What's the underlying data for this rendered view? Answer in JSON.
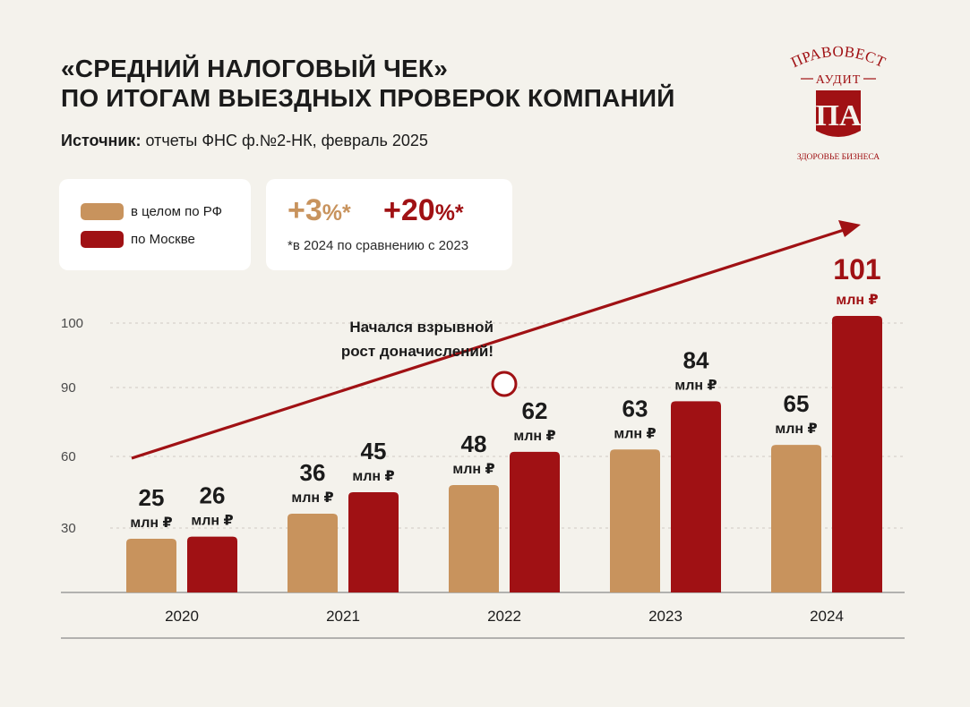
{
  "title_line1": "«СРЕДНИЙ НАЛОГОВЫЙ ЧЕК»",
  "title_line2": "ПО ИТОГАМ ВЫЕЗДНЫХ ПРОВЕРОК КОМПАНИЙ",
  "source_label": "Источник:",
  "source_text": "отчеты ФНС ф.№2-НК, февраль 2025",
  "logo": {
    "name": "ПРАВОВЕСТ",
    "sub": "АУДИТ",
    "monogram": "ПА",
    "tagline": "ЗДОРОВЬЕ БИЗНЕСА"
  },
  "growth": {
    "rf_value": "+3",
    "rf_unit": "%*",
    "moscow_value": "+20",
    "moscow_unit": "%*",
    "note": "*в 2024 по сравнению с 2023"
  },
  "annotation_line1": "Начался взрывной",
  "annotation_line2": "рост доначислений!",
  "unit_label": "млн ₽",
  "colors": {
    "rf": "#c8935d",
    "moscow": "#a01114",
    "background": "#f4f2ec"
  },
  "chart_data": {
    "type": "bar",
    "categories": [
      "2020",
      "2021",
      "2022",
      "2023",
      "2024"
    ],
    "series": [
      {
        "name": "в целом по РФ",
        "values": [
          25,
          36,
          48,
          63,
          65
        ]
      },
      {
        "name": "по Москве",
        "values": [
          26,
          45,
          62,
          84,
          101
        ]
      }
    ],
    "y_ticks": [
      30,
      60,
      90,
      100
    ],
    "grid": true,
    "legend": "top-left"
  }
}
